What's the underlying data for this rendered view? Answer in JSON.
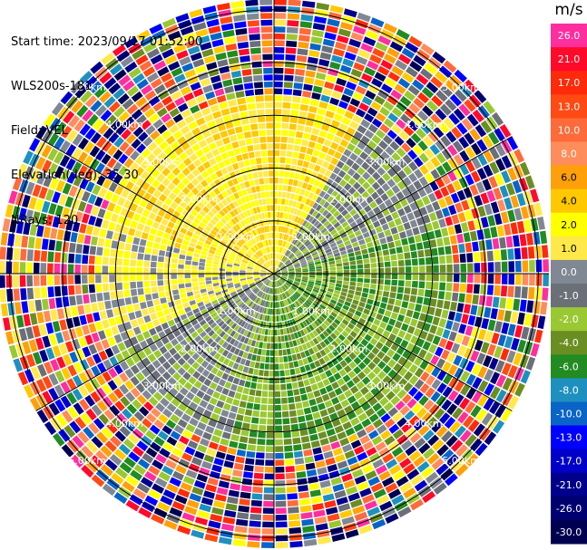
{
  "info": {
    "start_time": "Start time: 2023/09/17 01:52:00",
    "site": "WLS200s-181",
    "field": "Field: VEL",
    "elevation": "Elevation(deg): 35.30",
    "nrays": "NRays: 120"
  },
  "colorbar": {
    "unit": "m/s",
    "levels": [
      {
        "label": "26.0",
        "color": "#ff2e9e"
      },
      {
        "label": "21.0",
        "color": "#ff0a2a"
      },
      {
        "label": "17.0",
        "color": "#ff2a0a"
      },
      {
        "label": "13.0",
        "color": "#ff4a14"
      },
      {
        "label": "10.0",
        "color": "#ff6a3a"
      },
      {
        "label": "8.0",
        "color": "#ff8c5a"
      },
      {
        "label": "6.0",
        "color": "#ffa00a"
      },
      {
        "label": "4.0",
        "color": "#ffc800"
      },
      {
        "label": "2.0",
        "color": "#ffff00"
      },
      {
        "label": "1.0",
        "color": "#ffe94a"
      },
      {
        "label": "0.0",
        "color": "#808893"
      },
      {
        "label": "-1.0",
        "color": "#6a6f78"
      },
      {
        "label": "-2.0",
        "color": "#9ac832"
      },
      {
        "label": "-4.0",
        "color": "#6b8e23"
      },
      {
        "label": "-6.0",
        "color": "#228b22"
      },
      {
        "label": "-8.0",
        "color": "#1e90c0"
      },
      {
        "label": "-10.0",
        "color": "#0a64c8"
      },
      {
        "label": "-13.0",
        "color": "#0000ff"
      },
      {
        "label": "-17.0",
        "color": "#0000c8"
      },
      {
        "label": "-21.0",
        "color": "#00008b"
      },
      {
        "label": "-26.0",
        "color": "#000070"
      },
      {
        "label": "-30.0",
        "color": "#000050"
      }
    ]
  },
  "chart_data": {
    "type": "heatmap",
    "projection": "polar-ppi",
    "field": "VEL",
    "nrays": 120,
    "range_rings_km": [
      1.0,
      2.0,
      3.0,
      4.0,
      5.0
    ],
    "ring_labels": [
      "1.00km",
      "2.00km",
      "3.00km",
      "4.00km",
      "5.00km"
    ],
    "spoke_angles_deg": [
      0,
      60,
      90,
      120,
      180,
      240,
      270,
      300
    ],
    "max_range_km": 5.2,
    "near_range_km": 3.3,
    "velocity_pattern": [
      {
        "azimuth_from_deg": 285,
        "azimuth_to_deg": 30,
        "value_range": [
          1.0,
          4.0
        ],
        "note": "positive (yellow) sector"
      },
      {
        "azimuth_from_deg": 30,
        "azimuth_to_deg": 75,
        "value_range": [
          -2.0,
          0.0
        ],
        "note": "near-zero gray / light-green"
      },
      {
        "azimuth_from_deg": 75,
        "azimuth_to_deg": 195,
        "value_range": [
          -6.0,
          -2.0
        ],
        "note": "negative (green) sector"
      },
      {
        "azimuth_from_deg": 195,
        "azimuth_to_deg": 245,
        "value_range": [
          -2.0,
          0.0
        ],
        "note": "near-zero gray / light-green"
      },
      {
        "azimuth_from_deg": 245,
        "azimuth_to_deg": 285,
        "value_range": [
          0.0,
          2.0
        ],
        "note": "gray / yellow"
      }
    ],
    "outer_region": "noise (random velocities) beyond ~3.3 km"
  }
}
